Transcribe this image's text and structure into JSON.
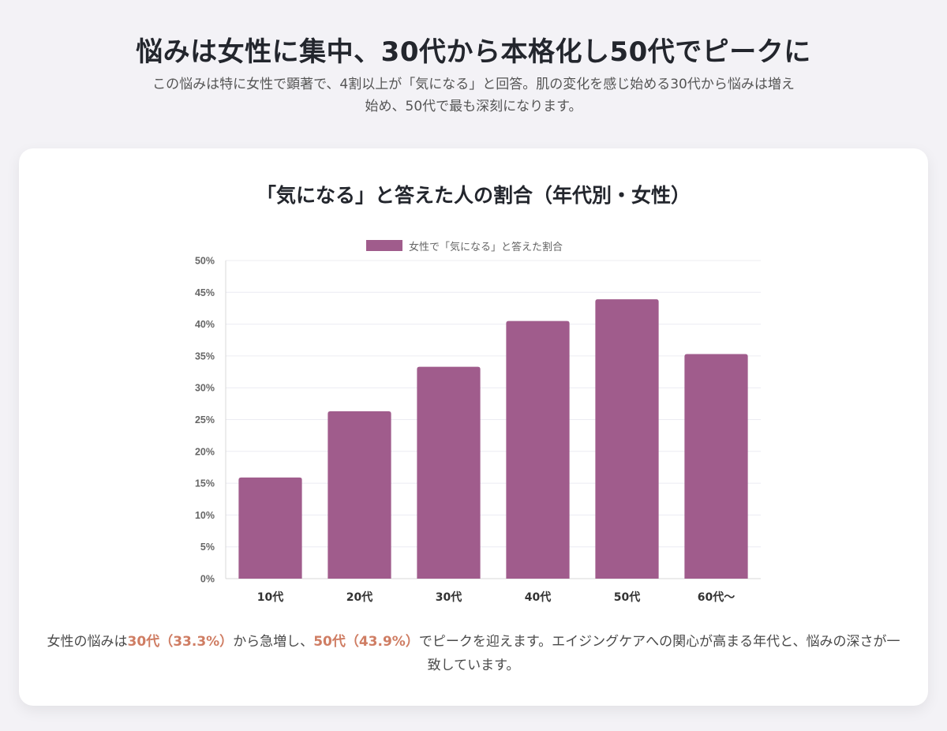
{
  "page": {
    "title": "悩みは女性に集中、30代から本格化し50代でピークに",
    "subtitle": "この悩みは特に女性で顕著で、4割以上が「気になる」と回答。肌の変化を感じ始める30代から悩みは増え始め、50代で最も深刻になります。"
  },
  "note": {
    "prefix": "女性の悩みは",
    "highlight1": "30代（33.3%）",
    "middle": "から急増し、",
    "highlight2": "50代（43.9%）",
    "suffix": "でピークを迎えます。エイジングケアへの関心が高まる年代と、悩みの深さが一致しています。"
  },
  "colors": {
    "bar": "#a05c8c",
    "highlight": "#cf7d63"
  },
  "chart_data": {
    "type": "bar",
    "title": "「気になる」と答えた人の割合（年代別・女性）",
    "legend": "女性で「気になる」と答えた割合",
    "categories": [
      "10代",
      "20代",
      "30代",
      "40代",
      "50代",
      "60代〜"
    ],
    "values": [
      15.9,
      26.3,
      33.3,
      40.5,
      43.9,
      35.3
    ],
    "ylim": [
      0,
      50
    ],
    "yticks": [
      "0%",
      "5%",
      "10%",
      "15%",
      "20%",
      "25%",
      "30%",
      "35%",
      "40%",
      "45%",
      "50%"
    ],
    "xlabel": "",
    "ylabel": "",
    "grid": true
  }
}
